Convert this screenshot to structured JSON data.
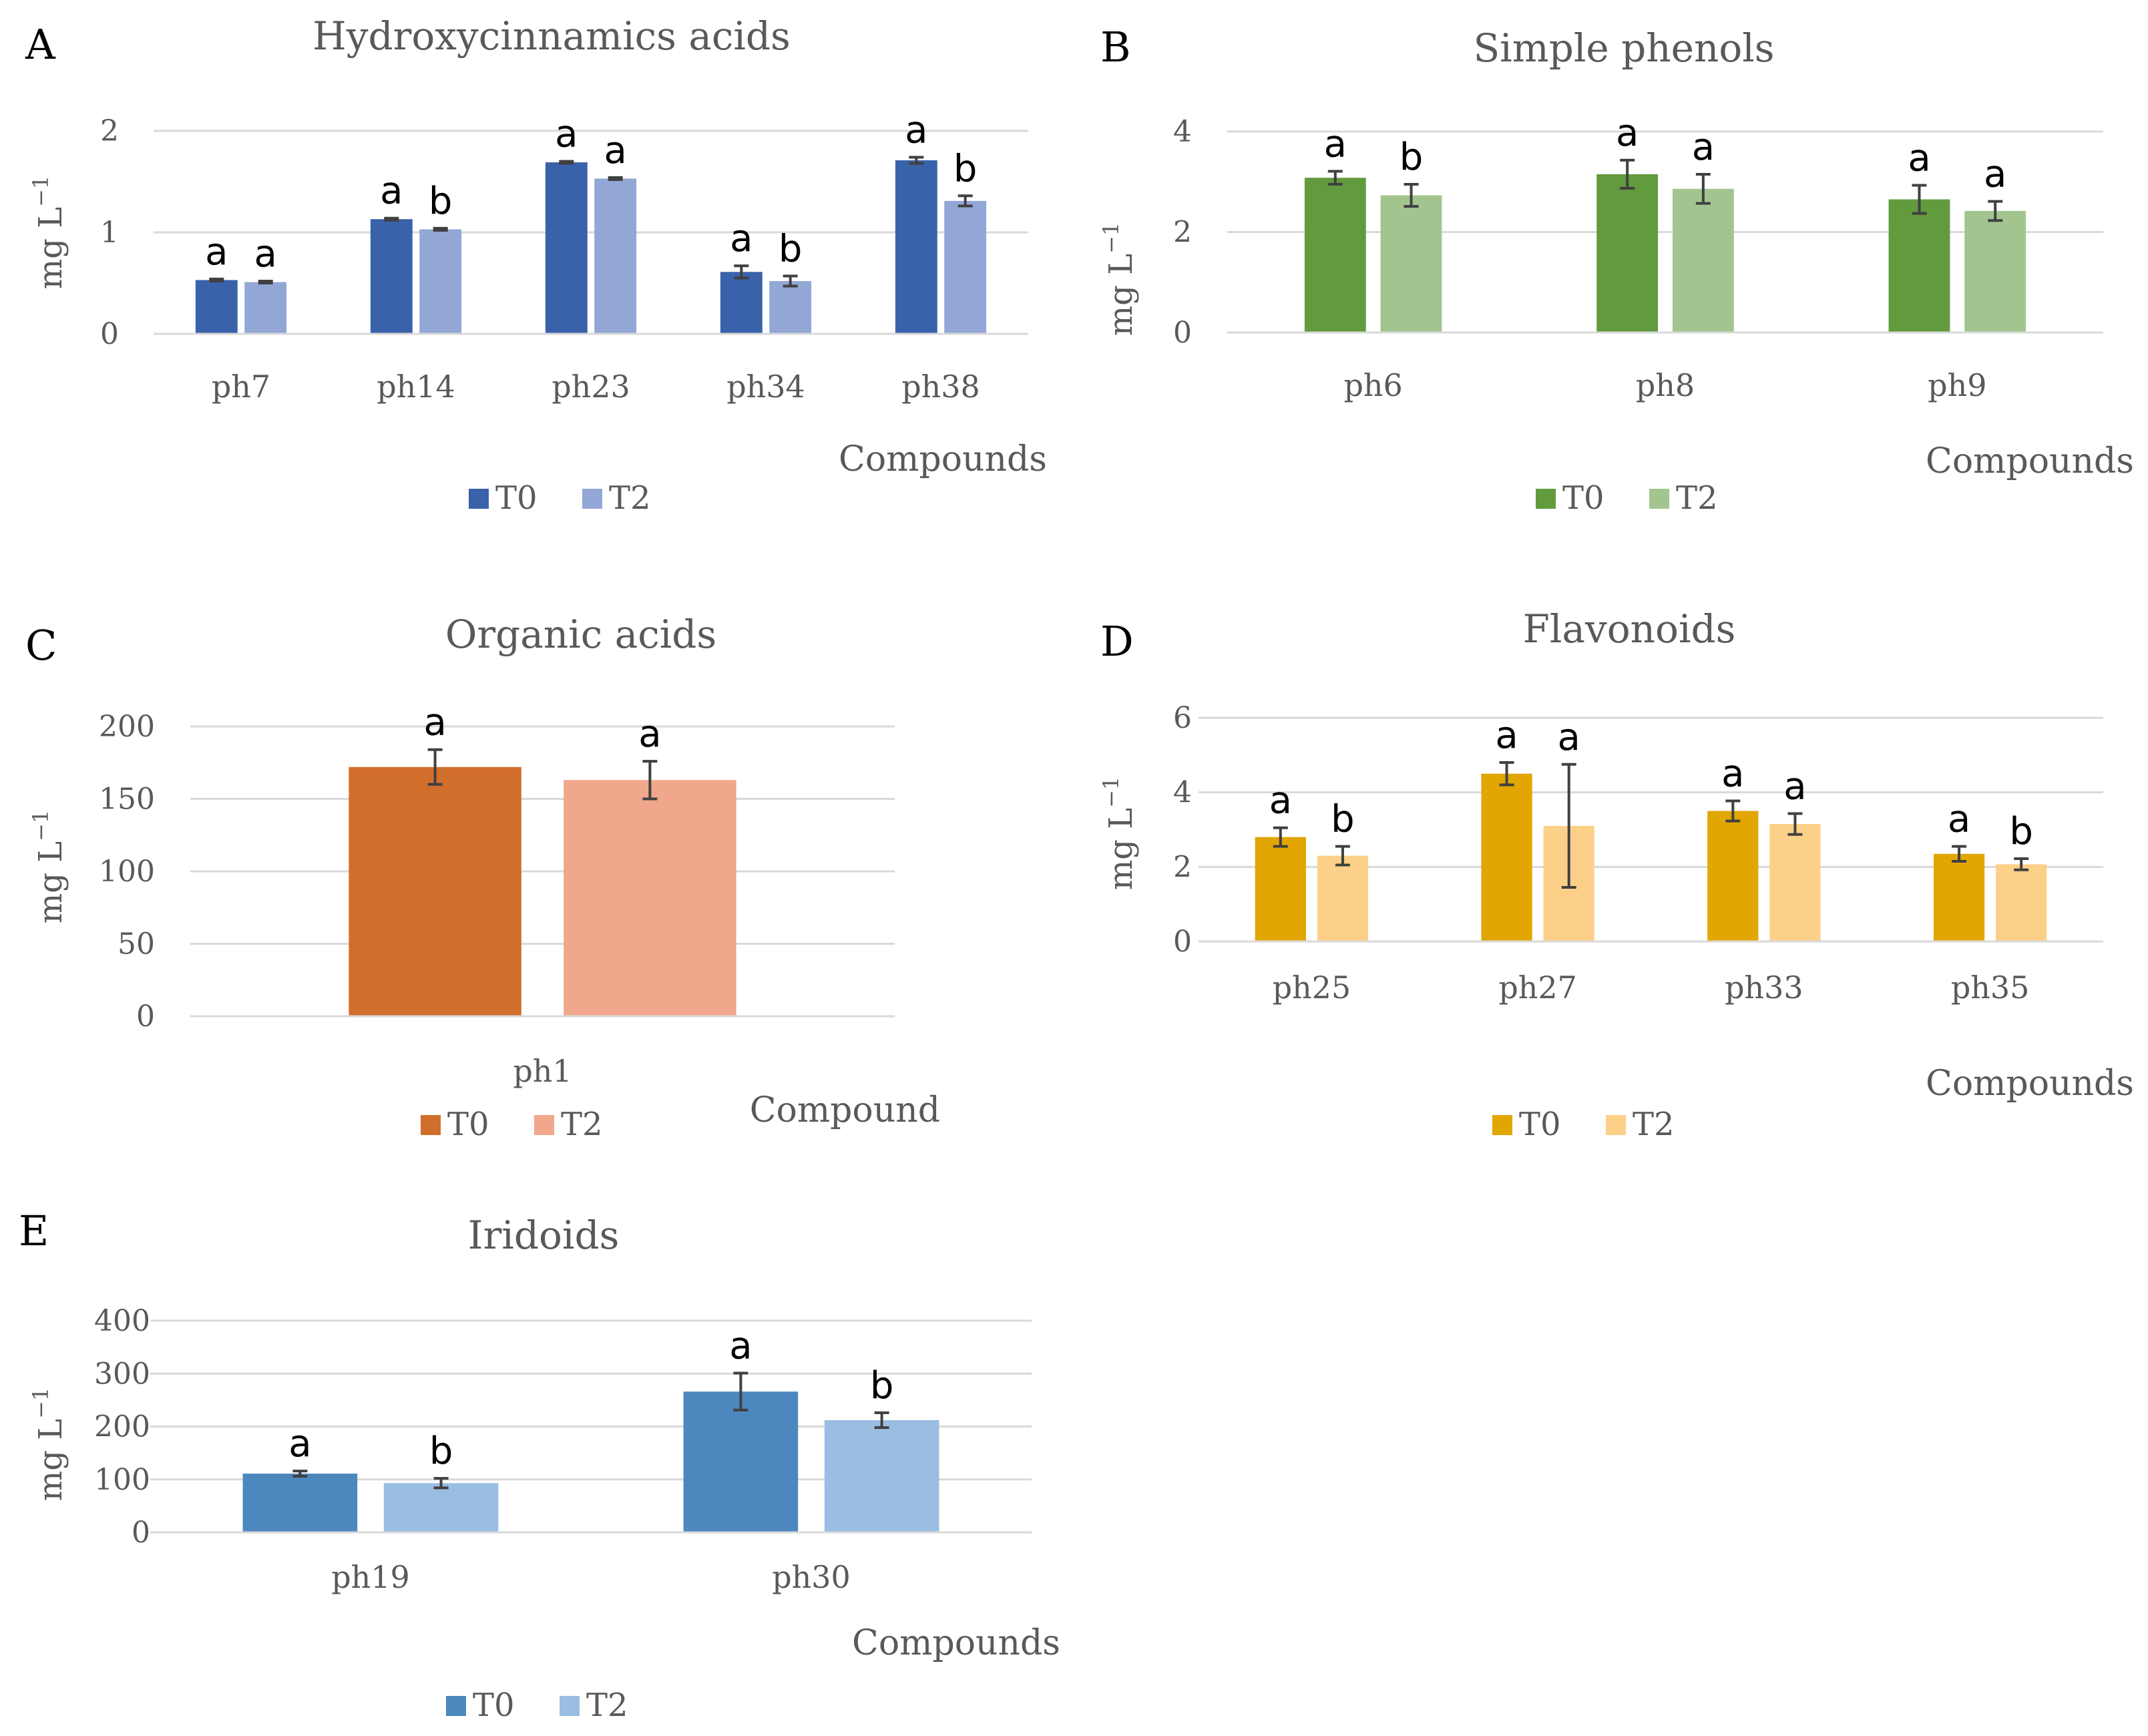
{
  "chart_data": [
    {
      "panel": "A",
      "type": "bar",
      "title": "Hydroxycinnamics acids",
      "xlabel": "Compounds",
      "ylabel": "mg L",
      "ylabel_sup": "−1",
      "ylim": [
        0,
        2
      ],
      "yticks": [
        0,
        1,
        2
      ],
      "categories": [
        "ph7",
        "ph14",
        "ph23",
        "ph34",
        "ph38"
      ],
      "series": [
        {
          "name": "T0",
          "color": "#3A62AA",
          "values": [
            0.53,
            1.13,
            1.69,
            0.61,
            1.71
          ],
          "errors": [
            0.01,
            0.01,
            0.01,
            0.06,
            0.03
          ],
          "letters": [
            "a",
            "a",
            "a",
            "a",
            "a"
          ]
        },
        {
          "name": "T2",
          "color": "#93A7D6",
          "values": [
            0.51,
            1.03,
            1.53,
            0.52,
            1.31
          ],
          "errors": [
            0.01,
            0.01,
            0.01,
            0.05,
            0.05
          ],
          "letters": [
            "a",
            "b",
            "a",
            "b",
            "b"
          ]
        }
      ]
    },
    {
      "panel": "B",
      "type": "bar",
      "title": "Simple phenols",
      "xlabel": "Compounds",
      "ylabel": "mg L",
      "ylabel_sup": "−1",
      "ylim": [
        0,
        4
      ],
      "yticks": [
        0,
        2,
        4
      ],
      "categories": [
        "ph6",
        "ph8",
        "ph9"
      ],
      "series": [
        {
          "name": "T0",
          "color": "#629A3E",
          "values": [
            3.08,
            3.15,
            2.65
          ],
          "errors": [
            0.13,
            0.28,
            0.28
          ],
          "letters": [
            "a",
            "a",
            "a"
          ]
        },
        {
          "name": "T2",
          "color": "#A2C58F",
          "values": [
            2.73,
            2.86,
            2.42
          ],
          "errors": [
            0.22,
            0.29,
            0.19
          ],
          "letters": [
            "b",
            "a",
            "a"
          ]
        }
      ]
    },
    {
      "panel": "C",
      "type": "bar",
      "title": "Organic acids",
      "xlabel": "Compound",
      "ylabel": "mg L",
      "ylabel_sup": "−1",
      "ylim": [
        0,
        200
      ],
      "yticks": [
        0,
        50,
        100,
        150,
        200
      ],
      "categories": [
        "ph1"
      ],
      "series": [
        {
          "name": "T0",
          "color": "#D26E2C",
          "values": [
            172
          ],
          "errors": [
            12
          ],
          "letters": [
            "a"
          ]
        },
        {
          "name": "T2",
          "color": "#F0A78C",
          "values": [
            163
          ],
          "errors": [
            13
          ],
          "letters": [
            "a"
          ]
        }
      ]
    },
    {
      "panel": "D",
      "type": "bar",
      "title": "Flavonoids",
      "xlabel": "Compounds",
      "ylabel": "mg L",
      "ylabel_sup": "−1",
      "ylim": [
        0,
        6
      ],
      "yticks": [
        0,
        2,
        4,
        6
      ],
      "categories": [
        "ph25",
        "ph27",
        "ph33",
        "ph35"
      ],
      "series": [
        {
          "name": "T0",
          "color": "#E1A600",
          "values": [
            2.8,
            4.5,
            3.5,
            2.35
          ],
          "errors": [
            0.25,
            0.3,
            0.27,
            0.2
          ],
          "letters": [
            "a",
            "a",
            "a",
            "a"
          ]
        },
        {
          "name": "T2",
          "color": "#FDD089",
          "values": [
            2.3,
            3.1,
            3.15,
            2.07
          ],
          "errors": [
            0.25,
            1.65,
            0.28,
            0.15
          ],
          "letters": [
            "b",
            "a",
            "a",
            "b"
          ]
        }
      ]
    },
    {
      "panel": "E",
      "type": "bar",
      "title": "Iridoids",
      "xlabel": "Compounds",
      "ylabel": "mg L",
      "ylabel_sup": "−1",
      "ylim": [
        0,
        400
      ],
      "yticks": [
        0,
        100,
        200,
        300,
        400
      ],
      "categories": [
        "ph19",
        "ph30"
      ],
      "series": [
        {
          "name": "T0",
          "color": "#4C88BE",
          "values": [
            111,
            266
          ],
          "errors": [
            5,
            35
          ],
          "letters": [
            "a",
            "a"
          ]
        },
        {
          "name": "T2",
          "color": "#9ABDE2",
          "values": [
            93,
            212
          ],
          "errors": [
            9,
            14
          ],
          "letters": [
            "b",
            "b"
          ]
        }
      ]
    }
  ]
}
